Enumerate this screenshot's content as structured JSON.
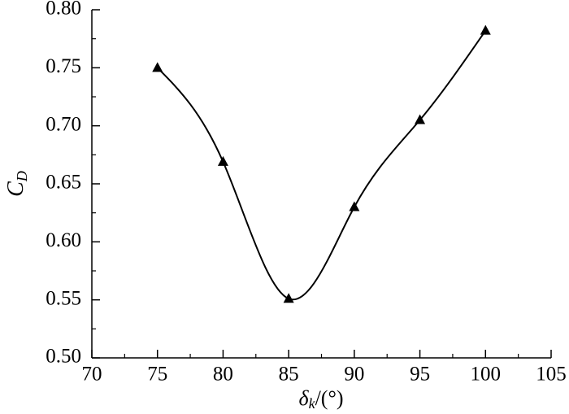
{
  "chart_data": {
    "type": "line",
    "x_label": {
      "symbol": "δ",
      "subscript": "k",
      "unit": "/(°)"
    },
    "y_label": {
      "symbol": "C",
      "subscript": "D"
    },
    "x": [
      75,
      80,
      85,
      90,
      95,
      100
    ],
    "series": [
      {
        "color": "#000000",
        "marker": "triangle",
        "values": [
          0.75,
          0.669,
          0.551,
          0.63,
          0.705,
          0.782
        ]
      }
    ],
    "xlim": [
      70,
      105
    ],
    "xticks": [
      70,
      75,
      80,
      85,
      90,
      95,
      100,
      105
    ],
    "ylim": [
      0.5,
      0.8
    ],
    "yticks": [
      {
        "value": 0.5,
        "label": "0.50"
      },
      {
        "value": 0.55,
        "label": "0.55"
      },
      {
        "value": 0.6,
        "label": "0.60"
      },
      {
        "value": 0.65,
        "label": "0.65"
      },
      {
        "value": 0.7,
        "label": "0.70"
      },
      {
        "value": 0.75,
        "label": "0.75"
      },
      {
        "value": 0.8,
        "label": "0.80"
      }
    ],
    "grid": false
  }
}
